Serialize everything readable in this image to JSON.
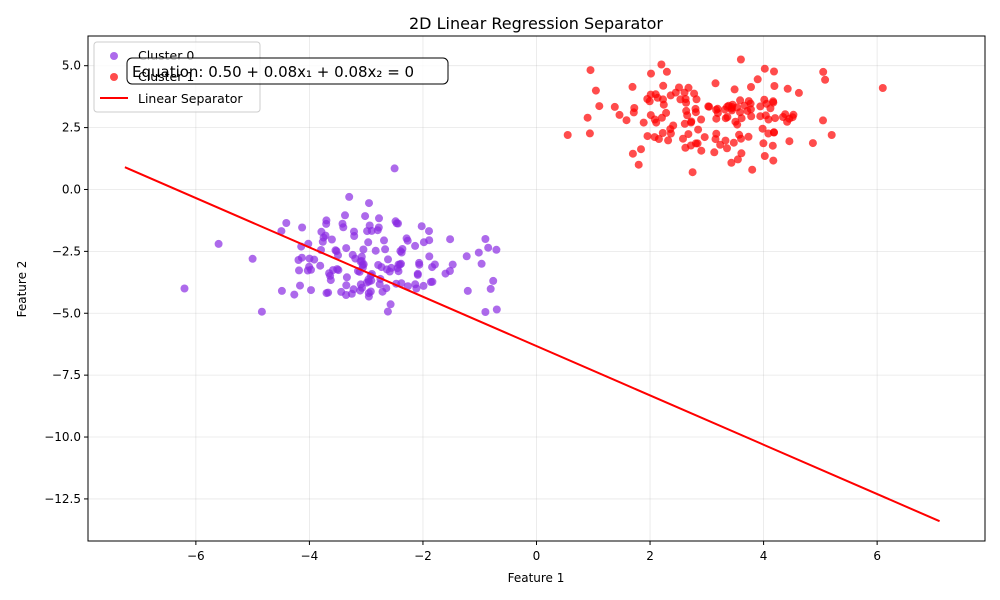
{
  "chart_data": {
    "type": "scatter",
    "title": "2D Linear Regression Separator",
    "xlabel": "Feature 1",
    "ylabel": "Feature 2",
    "xlim": [
      -7.9,
      7.9
    ],
    "ylim": [
      -14.2,
      6.2
    ],
    "xticks": [
      -6,
      -4,
      -2,
      0,
      2,
      4,
      6
    ],
    "yticks": [
      5.0,
      2.5,
      0.0,
      -2.5,
      -5.0,
      -7.5,
      -10.0,
      -12.5
    ],
    "xtick_labels": [
      "−6",
      "−4",
      "−2",
      "0",
      "2",
      "4",
      "6"
    ],
    "ytick_labels": [
      "5.0",
      "2.5",
      "0.0",
      "−2.5",
      "−5.0",
      "−7.5",
      "−10.0",
      "−12.5"
    ],
    "grid": true,
    "legend_position": "top-left",
    "equation_label": "Equation: 0.50 + 0.08x₁ + 0.08x₂ = 0",
    "series": [
      {
        "name": "Cluster 0",
        "color": "#8a2be2",
        "center": [
          -3.0,
          -2.9
        ],
        "spread": [
          0.95,
          0.95
        ],
        "count": 150,
        "points": [
          [
            -6.2,
            -4.0
          ],
          [
            -5.6,
            -2.2
          ],
          [
            -2.5,
            0.85
          ],
          [
            -3.3,
            -0.3
          ],
          [
            -2.95,
            -0.55
          ],
          [
            -0.7,
            -4.85
          ],
          [
            -0.9,
            -4.95
          ],
          [
            -0.9,
            -2.0
          ],
          [
            -0.85,
            -2.35
          ],
          [
            -5.0,
            -2.8
          ]
        ]
      },
      {
        "name": "Cluster 1",
        "color": "#ff0000",
        "center": [
          3.0,
          3.0
        ],
        "spread": [
          0.95,
          0.95
        ],
        "count": 150,
        "points": [
          [
            6.1,
            4.1
          ],
          [
            0.55,
            2.2
          ],
          [
            2.75,
            0.7
          ],
          [
            1.8,
            1.0
          ],
          [
            3.8,
            0.8
          ],
          [
            2.2,
            5.05
          ],
          [
            3.6,
            5.25
          ],
          [
            5.05,
            4.75
          ],
          [
            5.2,
            2.2
          ],
          [
            0.9,
            2.9
          ]
        ]
      },
      {
        "name": "Linear Separator",
        "type": "line",
        "color": "#ff0000",
        "x": [
          -7.25,
          7.1
        ],
        "y": [
          0.9,
          -13.4
        ]
      }
    ]
  }
}
